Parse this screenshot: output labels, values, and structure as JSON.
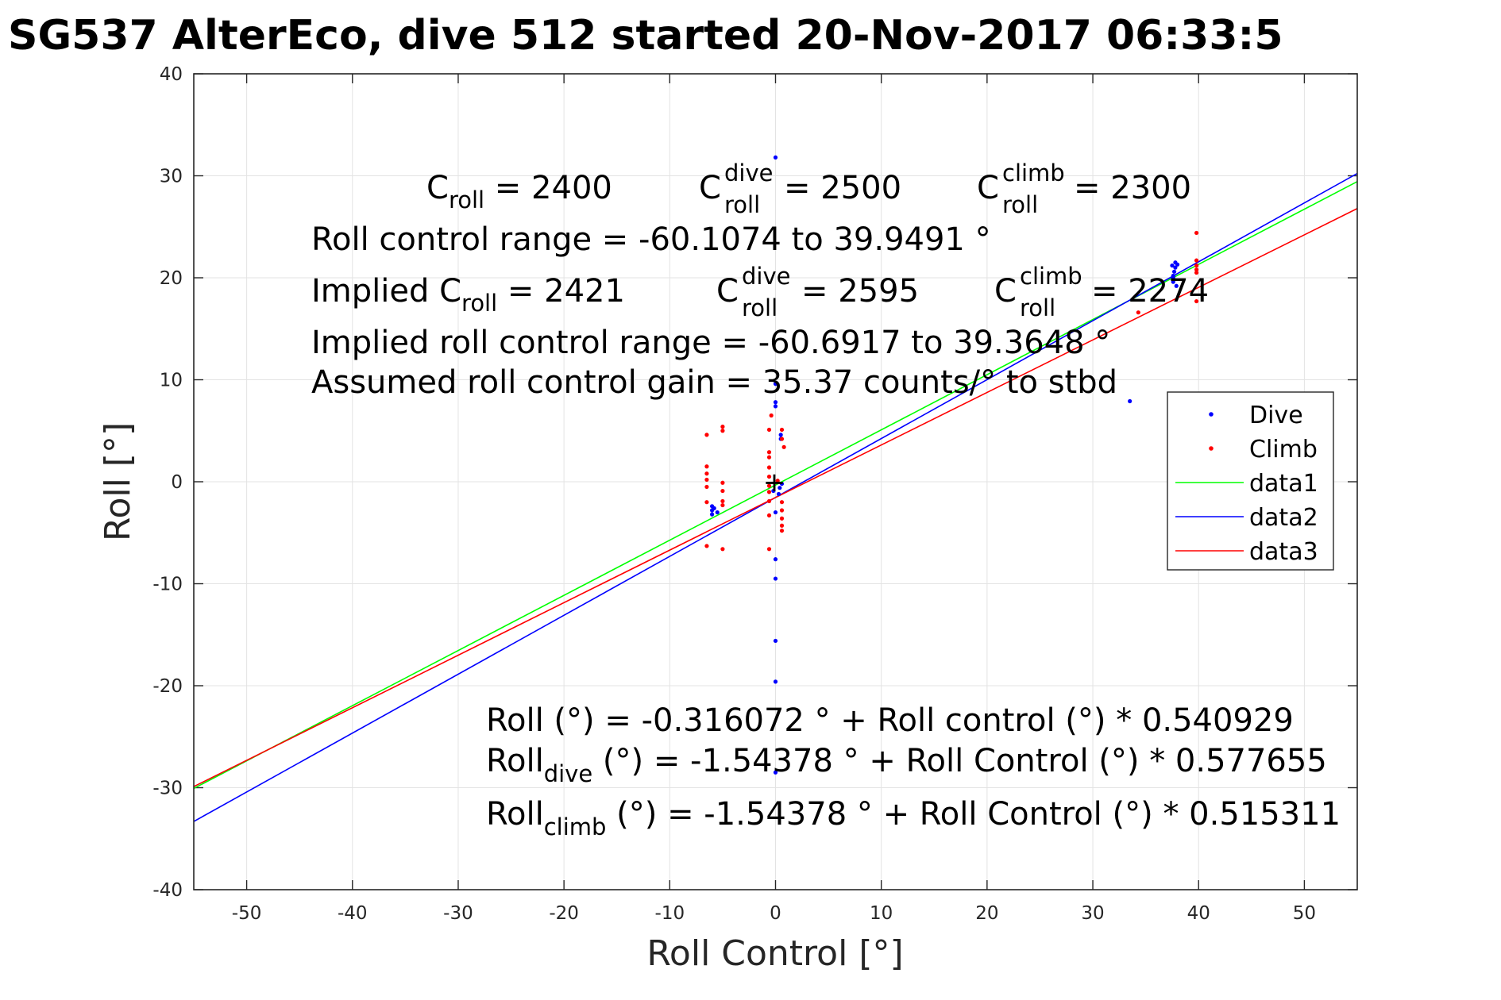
{
  "chart_data": {
    "type": "scatter",
    "title": "SG537 AlterEco, dive 512 started 20-Nov-2017 06:33:5",
    "xlabel": "Roll Control [°]",
    "ylabel": "Roll [°]",
    "xlim": [
      -55,
      55
    ],
    "ylim": [
      -40,
      40
    ],
    "xticks": [
      -50,
      -40,
      -30,
      -20,
      -10,
      0,
      10,
      20,
      30,
      40,
      50
    ],
    "yticks": [
      -40,
      -30,
      -20,
      -10,
      0,
      10,
      20,
      30,
      40
    ],
    "xtick_labels": [
      "-50",
      "-40",
      "-30",
      "-20",
      "-10",
      "0",
      "10",
      "20",
      "30",
      "40",
      "50"
    ],
    "ytick_labels": [
      "-40",
      "-30",
      "-20",
      "-10",
      "0",
      "10",
      "20",
      "30",
      "40"
    ],
    "grid": true,
    "legend_position": "right",
    "series": [
      {
        "name": "Dive",
        "kind": "points",
        "color": "#0000ff",
        "points": [
          [
            0,
            31.8
          ],
          [
            0,
            9.6
          ],
          [
            0,
            7.8
          ],
          [
            0,
            7.4
          ],
          [
            0.5,
            4.6
          ],
          [
            0.5,
            4.2
          ],
          [
            0,
            -3
          ],
          [
            0,
            -7.6
          ],
          [
            0,
            -9.5
          ],
          [
            0,
            -15.6
          ],
          [
            0,
            -19.6
          ],
          [
            0,
            -28.5
          ],
          [
            0.3,
            -1.2
          ],
          [
            0.4,
            -0.6
          ],
          [
            -0.2,
            -0.9
          ],
          [
            0.6,
            -0.2
          ],
          [
            -6,
            -2.8
          ],
          [
            -6,
            -2.4
          ],
          [
            -6,
            -3.2
          ],
          [
            -5.8,
            -2.6
          ],
          [
            -5.5,
            -3
          ],
          [
            33.5,
            7.9
          ],
          [
            37.6,
            19.6
          ],
          [
            37.6,
            20.2
          ],
          [
            37.8,
            21
          ],
          [
            37.8,
            21.5
          ],
          [
            37.7,
            20.6
          ],
          [
            37.9,
            19.2
          ],
          [
            37.5,
            21.2
          ],
          [
            37.6,
            20
          ],
          [
            38,
            21.3
          ]
        ]
      },
      {
        "name": "Climb",
        "kind": "points",
        "color": "#ff0000",
        "points": [
          [
            -6.5,
            4.6
          ],
          [
            -6.5,
            1.5
          ],
          [
            -6.5,
            0.8
          ],
          [
            -6.5,
            0.2
          ],
          [
            -6.5,
            -0.5
          ],
          [
            -6.5,
            -2
          ],
          [
            -6.5,
            -6.3
          ],
          [
            -5,
            5.4
          ],
          [
            -5,
            5
          ],
          [
            -5,
            -0.1
          ],
          [
            -5,
            -0.9
          ],
          [
            -5,
            -1.9
          ],
          [
            -5,
            -2.3
          ],
          [
            -5,
            -6.6
          ],
          [
            -0.4,
            6.5
          ],
          [
            -0.6,
            5.1
          ],
          [
            -0.6,
            2.9
          ],
          [
            -0.6,
            2.4
          ],
          [
            -0.6,
            1.4
          ],
          [
            -0.6,
            0.5
          ],
          [
            -0.6,
            -0.4
          ],
          [
            -0.6,
            -1
          ],
          [
            -0.6,
            -1.9
          ],
          [
            -0.6,
            -3.3
          ],
          [
            -0.6,
            -6.6
          ],
          [
            0.6,
            5.1
          ],
          [
            0.6,
            4.2
          ],
          [
            0.8,
            3.4
          ],
          [
            0.6,
            -2
          ],
          [
            0.6,
            -2.8
          ],
          [
            0.6,
            -3.6
          ],
          [
            0.6,
            -4.3
          ],
          [
            0.6,
            -4.8
          ],
          [
            0.2,
            0.1
          ],
          [
            34.3,
            16.6
          ],
          [
            39.8,
            24.4
          ],
          [
            39.8,
            21.7
          ],
          [
            39.8,
            21.2
          ],
          [
            39.8,
            20.8
          ],
          [
            39.8,
            20.5
          ],
          [
            39.8,
            17.7
          ]
        ]
      },
      {
        "name": "data1",
        "kind": "line",
        "color": "#00ff00",
        "x": [
          -55,
          55
        ],
        "y": [
          -30.07,
          29.43
        ]
      },
      {
        "name": "data2",
        "kind": "line",
        "color": "#0000ff",
        "x": [
          -55,
          55
        ],
        "y": [
          -33.31,
          30.23
        ]
      },
      {
        "name": "data3",
        "kind": "line",
        "color": "#ff0000",
        "x": [
          -55,
          55
        ],
        "y": [
          -29.89,
          26.79
        ]
      }
    ],
    "annotations": {
      "croll": {
        "base": "C",
        "sub": "roll",
        "value": " = 2400"
      },
      "croll_dive": {
        "base": "C",
        "sup": "dive",
        "sub": "roll",
        "value": " = 2500"
      },
      "croll_climb": {
        "base": "C",
        "sup": "climb",
        "sub": "roll",
        "value": " = 2300"
      },
      "range": "Roll control range = -60.1074 to 39.9491 °",
      "implied_croll": {
        "prefix": "Implied C",
        "sub": "roll",
        "value": " = 2421"
      },
      "implied_dive": {
        "base": "C",
        "sup": "dive",
        "sub": "roll",
        "value": " = 2595"
      },
      "implied_climb": {
        "base": "C",
        "sup": "climb",
        "sub": "roll",
        "value": " = 2274"
      },
      "implied_range": "Implied roll control range = -60.6917 to 39.3648 °",
      "gain": "Assumed roll control gain = 35.37 counts/° to stbd",
      "fit_all": "Roll (°) = -0.316072 ° + Roll control (°) * 0.540929",
      "fit_dive": {
        "base": "Roll",
        "sub": "dive",
        "rest": " (°) = -1.54378 ° + Roll Control (°) * 0.577655"
      },
      "fit_climb": {
        "base": "Roll",
        "sub": "climb",
        "rest": " (°) = -1.54378 ° + Roll Control (°) * 0.515311"
      }
    },
    "center_marker": "+"
  }
}
